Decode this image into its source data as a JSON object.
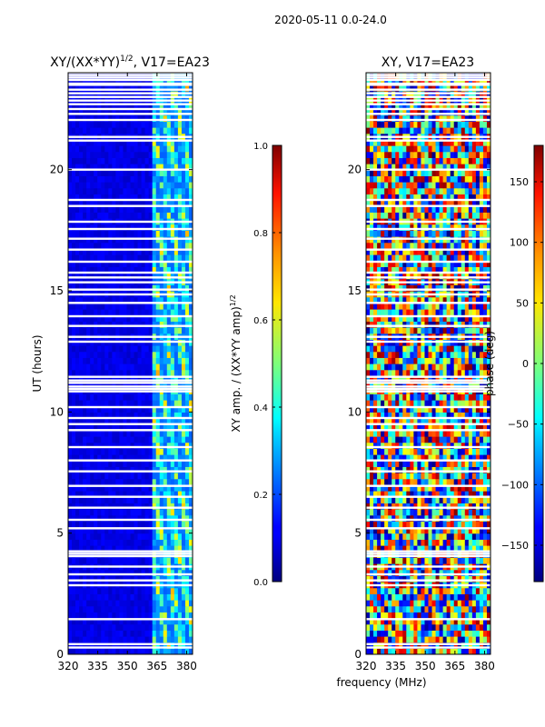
{
  "figure_title": "2020-05-11 0.0-24.0",
  "chart_data": [
    {
      "type": "heatmap",
      "title_main": "XY/(XX*YY)",
      "title_sup": "1/2",
      "title_rest": ", V17=EA23",
      "xlabel": "",
      "ylabel": "UT (hours)",
      "xlim": [
        320,
        383
      ],
      "ylim": [
        0,
        24
      ],
      "xticks": [
        320,
        335,
        350,
        365,
        380
      ],
      "yticks": [
        0,
        5,
        10,
        15,
        20
      ],
      "colorbar": {
        "label_main": "XY amp. / (XX*YY amp)",
        "label_sup": "1/2",
        "range": [
          0.0,
          1.0
        ],
        "ticks": [
          "0.0",
          "0.2",
          "0.4",
          "0.6",
          "0.8",
          "1.0"
        ],
        "tick_values": [
          0.0,
          0.2,
          0.4,
          0.6,
          0.8,
          1.0
        ],
        "colormap": "jet"
      },
      "pattern": "mostly low amplitude (~0.05-0.15) below 362 MHz; patchy higher amplitude (0.3-0.7) between 362 and 383 MHz; white horizontal gaps of missing data",
      "gap_hours": [
        0.28,
        0.42,
        1.45,
        2.85,
        3.05,
        3.3,
        3.62,
        4.05,
        4.15,
        4.25,
        5.2,
        5.55,
        6.05,
        6.5,
        6.95,
        7.55,
        8.0,
        8.55,
        9.25,
        9.5,
        9.75,
        10.2,
        10.85,
        10.95,
        11.05,
        11.2,
        11.3,
        11.45,
        12.9,
        13.1,
        13.55,
        13.95,
        14.5,
        14.85,
        15.05,
        15.35,
        15.55,
        15.75,
        16.2,
        16.7,
        17.15,
        17.55,
        17.85,
        18.5,
        18.75,
        20.0,
        21.2,
        21.35,
        22.05,
        22.3,
        22.5,
        22.7,
        22.85,
        23.0,
        23.15,
        23.3,
        23.5,
        23.55,
        23.7,
        23.8,
        23.9,
        24.0
      ]
    },
    {
      "type": "heatmap",
      "title": "XY, V17=EA23",
      "xlabel": "frequency (MHz)",
      "ylabel": "",
      "xlim": [
        320,
        383
      ],
      "ylim": [
        0,
        24
      ],
      "xticks": [
        320,
        335,
        350,
        365,
        380
      ],
      "yticks": [
        0,
        5,
        10,
        15,
        20
      ],
      "colorbar": {
        "label": "phase (deg)",
        "range": [
          -180,
          180
        ],
        "ticks": [
          "−150",
          "−100",
          "−50",
          "0",
          "50",
          "100",
          "150"
        ],
        "tick_values": [
          -150,
          -100,
          -50,
          0,
          50,
          100,
          150
        ],
        "colormap": "jet"
      },
      "pattern": "wrapped phase from -180 to 180 deg varying across frequency and time, with the same missing-data gaps",
      "gap_hours": [
        0.28,
        0.42,
        1.45,
        2.85,
        3.05,
        3.3,
        3.62,
        4.05,
        4.15,
        4.25,
        5.2,
        5.55,
        6.05,
        6.5,
        6.95,
        7.55,
        8.0,
        8.55,
        9.25,
        9.5,
        9.75,
        10.2,
        10.85,
        10.95,
        11.05,
        11.2,
        11.3,
        11.45,
        12.9,
        13.1,
        13.55,
        13.95,
        14.5,
        14.85,
        15.05,
        15.35,
        15.55,
        15.75,
        16.2,
        16.7,
        17.15,
        17.55,
        17.85,
        18.5,
        18.75,
        20.0,
        21.2,
        21.35,
        22.05,
        22.3,
        22.5,
        22.7,
        22.85,
        23.0,
        23.15,
        23.3,
        23.5,
        23.55,
        23.7,
        23.8,
        23.9,
        24.0
      ]
    }
  ]
}
